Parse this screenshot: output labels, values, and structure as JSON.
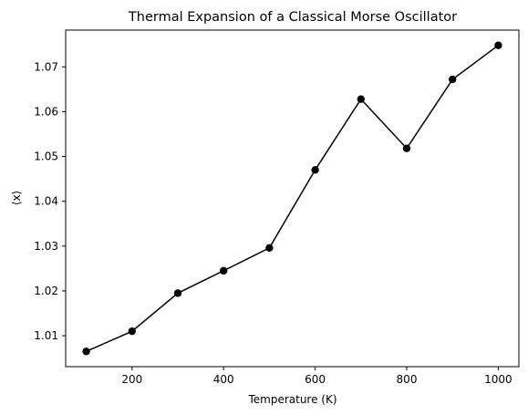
{
  "chart_data": {
    "type": "line",
    "title": "Thermal Expansion of a Classical Morse Oscillator",
    "xlabel": "Temperature (K)",
    "ylabel": "⟨x⟩",
    "x": [
      100,
      200,
      300,
      400,
      500,
      600,
      700,
      800,
      900,
      1000
    ],
    "series": [
      {
        "values": [
          1.0065,
          1.011,
          1.0195,
          1.0245,
          1.0296,
          1.047,
          1.0628,
          1.0518,
          1.0672,
          1.0748
        ]
      }
    ],
    "xlim": [
      55,
      1045
    ],
    "ylim": [
      1.0031,
      1.0782
    ],
    "xticks": [
      200,
      400,
      600,
      800,
      1000
    ],
    "xtick_labels": [
      "200",
      "400",
      "600",
      "800",
      "1000"
    ],
    "yticks": [
      1.01,
      1.02,
      1.03,
      1.04,
      1.05,
      1.06,
      1.07
    ],
    "ytick_labels": [
      "1.01",
      "1.02",
      "1.03",
      "1.04",
      "1.05",
      "1.06",
      "1.07"
    ],
    "grid": false,
    "line_color": "#000000",
    "marker": "circle"
  }
}
